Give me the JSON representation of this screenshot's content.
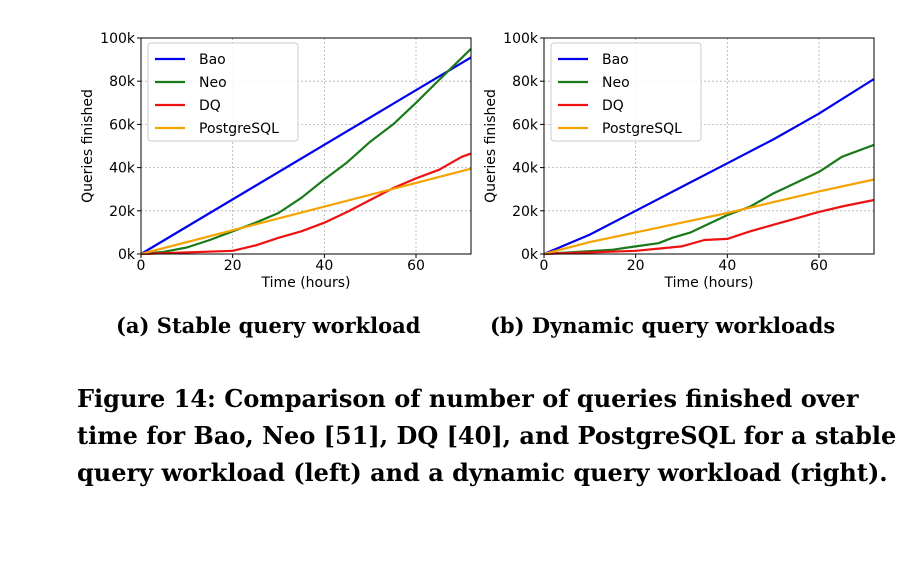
{
  "chart_data": [
    {
      "type": "line",
      "subcaption": "(a) Stable query workload",
      "xlabel": "Time (hours)",
      "ylabel": "Queries finished",
      "xlim": [
        0,
        72
      ],
      "ylim": [
        0,
        100000
      ],
      "xticks": [
        0,
        20,
        40,
        60
      ],
      "xtick_labels": [
        "0",
        "20",
        "40",
        "60"
      ],
      "yticks": [
        0,
        20000,
        40000,
        60000,
        80000,
        100000
      ],
      "ytick_labels": [
        "0k",
        "20k",
        "40k",
        "60k",
        "80k",
        "100k"
      ],
      "grid": true,
      "legend_position": "top-left",
      "series": [
        {
          "name": "Bao",
          "color": "#0000ee",
          "x": [
            0,
            72
          ],
          "y": [
            0,
            91000
          ]
        },
        {
          "name": "Neo",
          "color": "#1a7a1a",
          "x": [
            0,
            5,
            10,
            15,
            20,
            25,
            30,
            35,
            40,
            45,
            50,
            55,
            60,
            65,
            72
          ],
          "y": [
            0,
            1000,
            3000,
            6500,
            10500,
            14500,
            19000,
            26000,
            34500,
            42500,
            52000,
            60000,
            70000,
            80500,
            95000
          ]
        },
        {
          "name": "DQ",
          "color": "#ee1111",
          "x": [
            0,
            20,
            25,
            30,
            35,
            40,
            45,
            50,
            55,
            60,
            65,
            70,
            72
          ],
          "y": [
            0,
            1500,
            4000,
            7500,
            10500,
            14500,
            19500,
            25000,
            30500,
            35000,
            39000,
            45000,
            46500
          ]
        },
        {
          "name": "PostgreSQL",
          "color": "#f5a300",
          "x": [
            0,
            72
          ],
          "y": [
            0,
            39500
          ]
        }
      ]
    },
    {
      "type": "line",
      "subcaption": "(b) Dynamic query workloads",
      "xlabel": "Time (hours)",
      "ylabel": "Queries finished",
      "xlim": [
        0,
        72
      ],
      "ylim": [
        0,
        100000
      ],
      "xticks": [
        0,
        20,
        40,
        60
      ],
      "xtick_labels": [
        "0",
        "20",
        "40",
        "60"
      ],
      "yticks": [
        0,
        20000,
        40000,
        60000,
        80000,
        100000
      ],
      "ytick_labels": [
        "0k",
        "20k",
        "40k",
        "60k",
        "80k",
        "100k"
      ],
      "grid": true,
      "legend_position": "top-left",
      "series": [
        {
          "name": "Bao",
          "color": "#0000ee",
          "x": [
            0,
            10,
            20,
            30,
            40,
            50,
            60,
            72
          ],
          "y": [
            0,
            9000,
            20000,
            31000,
            42000,
            53000,
            65000,
            81000
          ]
        },
        {
          "name": "Neo",
          "color": "#1a7a1a",
          "x": [
            0,
            15,
            20,
            25,
            28,
            32,
            35,
            40,
            45,
            50,
            55,
            60,
            65,
            72
          ],
          "y": [
            0,
            2000,
            3500,
            5000,
            7500,
            10000,
            13000,
            18000,
            22000,
            28000,
            33000,
            38000,
            45000,
            50500
          ]
        },
        {
          "name": "DQ",
          "color": "#ee1111",
          "x": [
            0,
            20,
            25,
            30,
            35,
            40,
            45,
            50,
            55,
            60,
            65,
            72
          ],
          "y": [
            0,
            1500,
            2500,
            3500,
            6500,
            7000,
            10500,
            13500,
            16500,
            19500,
            22000,
            25000
          ]
        },
        {
          "name": "PostgreSQL",
          "color": "#f5a300",
          "x": [
            0,
            10,
            20,
            30,
            40,
            50,
            60,
            72
          ],
          "y": [
            0,
            5500,
            10000,
            14500,
            19000,
            24000,
            29000,
            34500
          ]
        }
      ]
    }
  ],
  "caption": {
    "lines": [
      "Figure 14: Comparison of number of queries finished over",
      "time for Bao, Neo [51], DQ [40], and PostgreSQL for a stable",
      "query workload (left) and a dynamic query workload (right)."
    ]
  }
}
